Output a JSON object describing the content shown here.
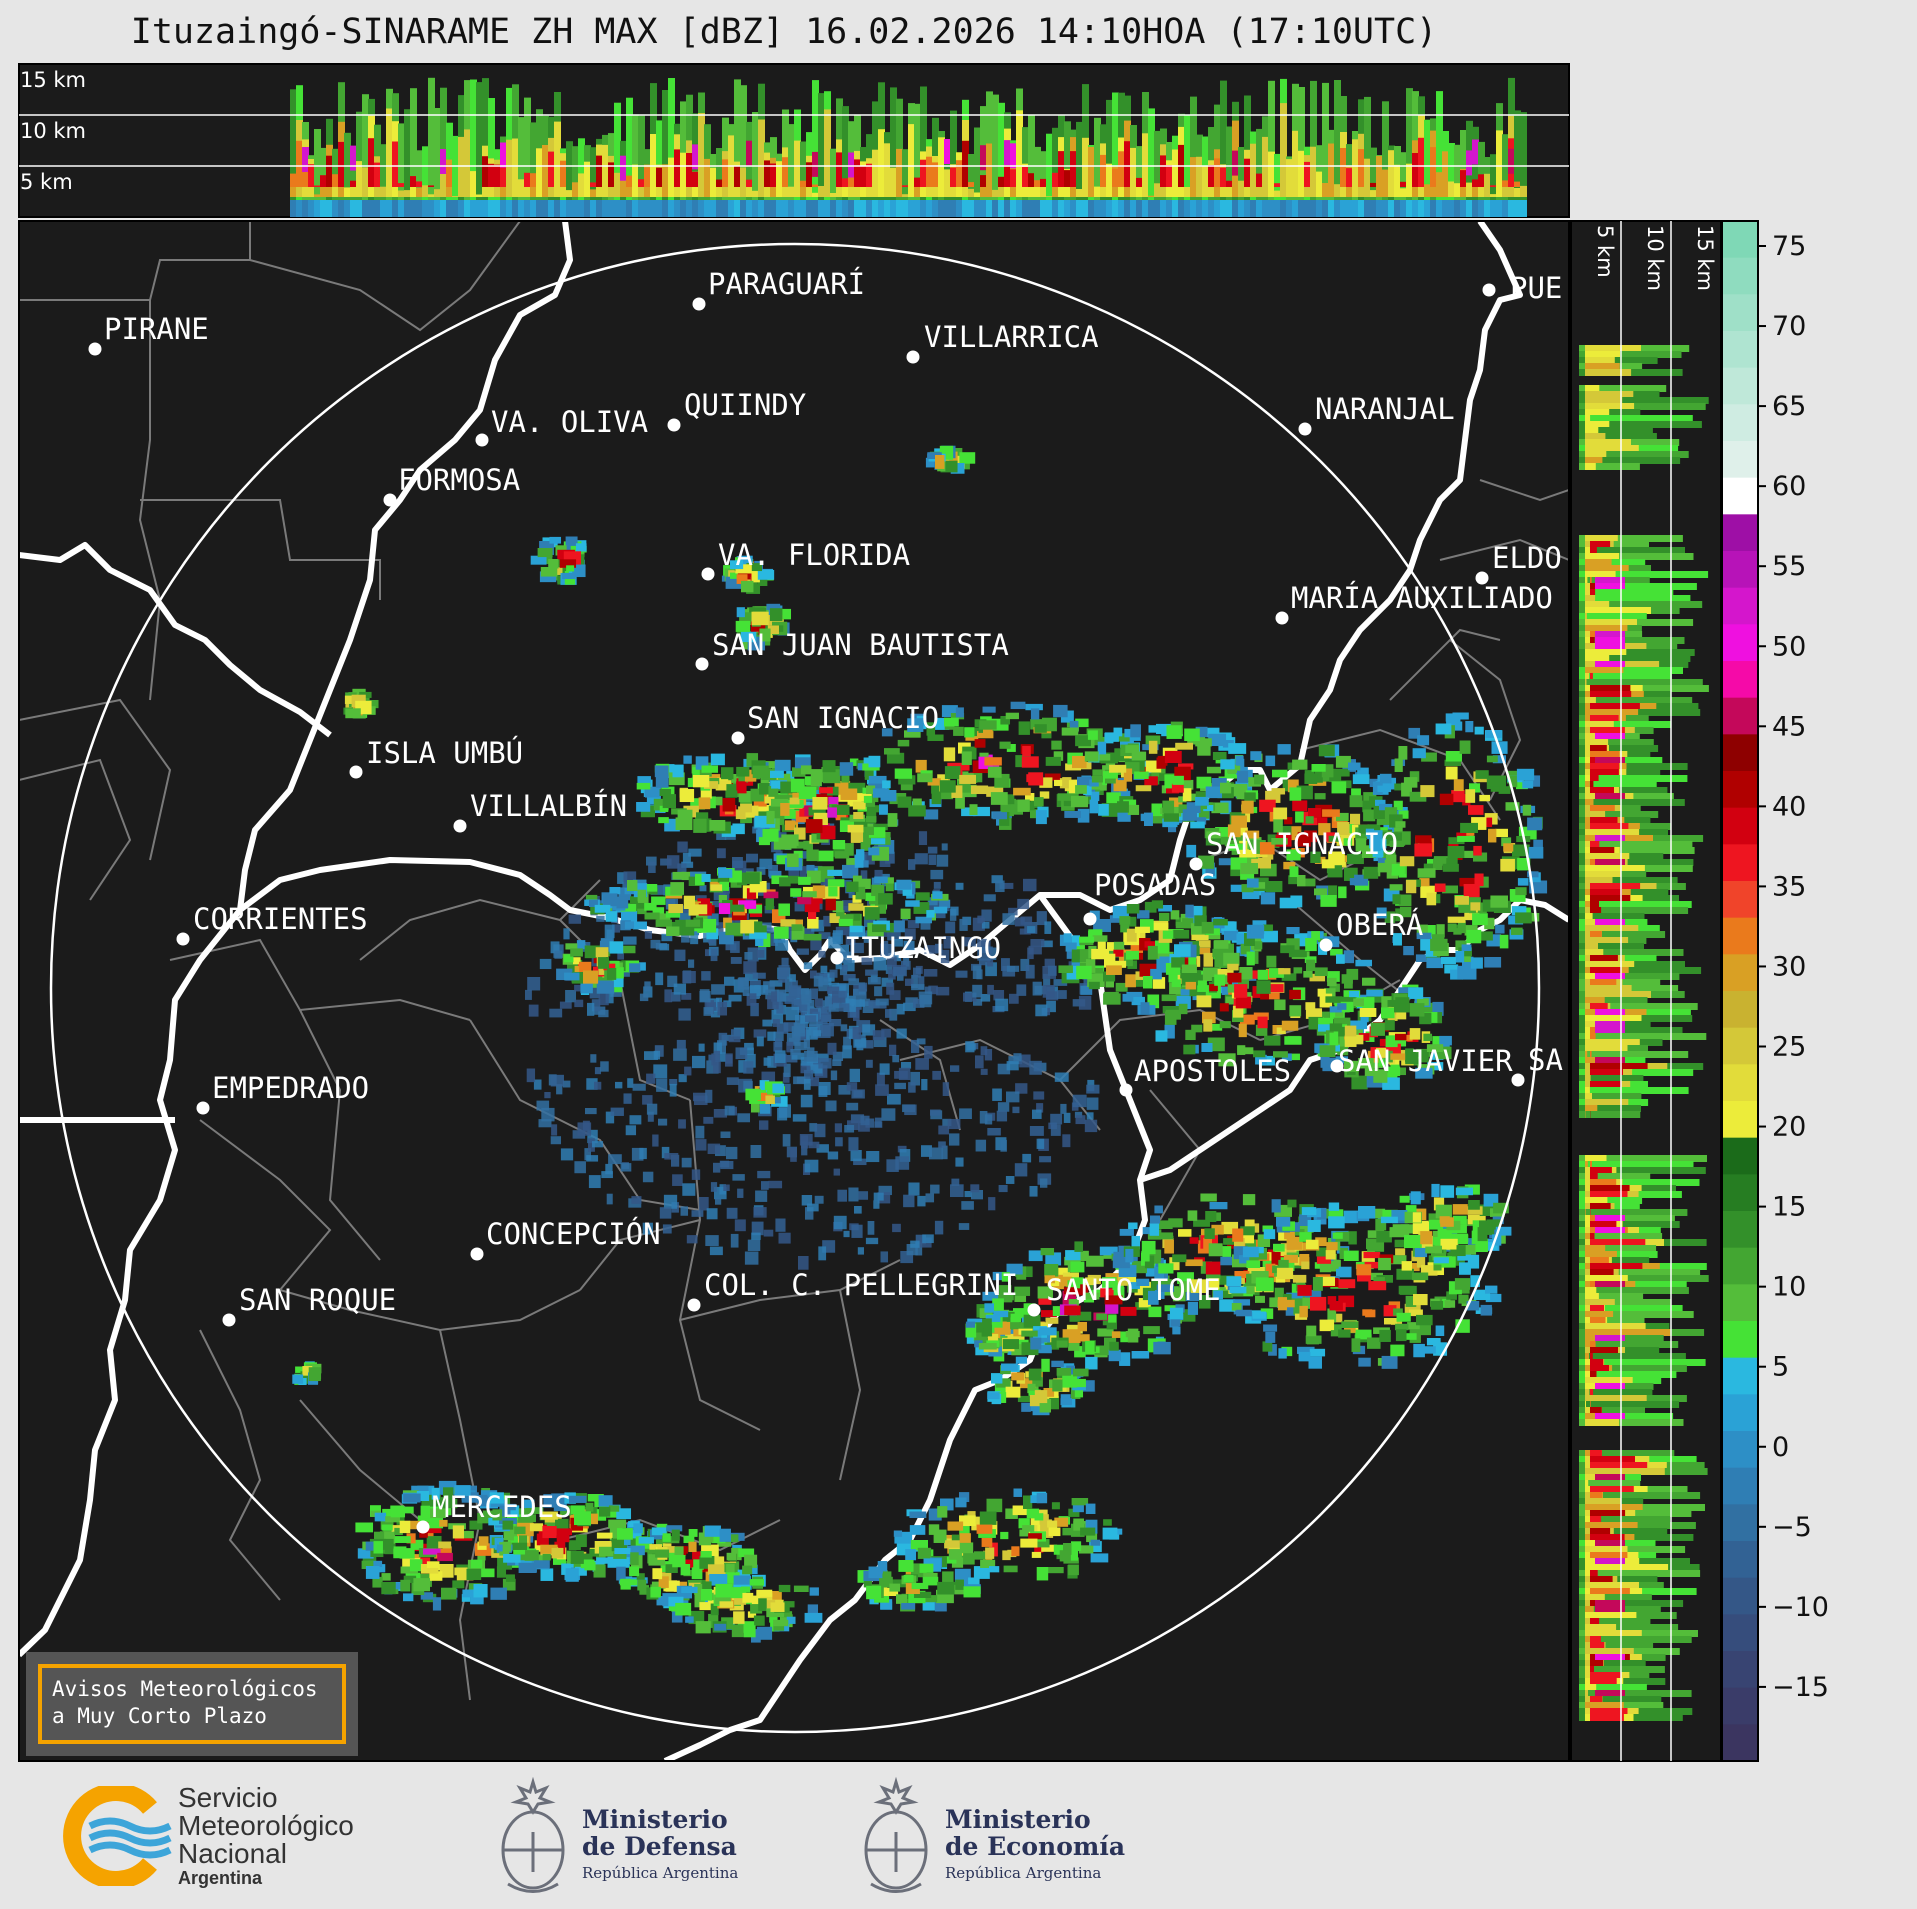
{
  "title": "Ituzaingó-SINARAME ZH MAX [dBZ] 16.02.2026 14:10HOA (17:10UTC)",
  "altitude_labels_top": [
    "15 km",
    "10 km",
    "5 km"
  ],
  "altitude_labels_side": [
    "5 km",
    "10 km",
    "15 km"
  ],
  "colorbar": {
    "unit": "dBZ",
    "ticks": [
      "75",
      "70",
      "65",
      "60",
      "55",
      "50",
      "45",
      "40",
      "35",
      "30",
      "25",
      "20",
      "15",
      "10",
      "5",
      "0",
      "−5",
      "−10",
      "−15"
    ]
  },
  "cities": [
    {
      "name": "PIRANE"
    },
    {
      "name": "PARAGUARÍ"
    },
    {
      "name": "VILLARRICA"
    },
    {
      "name": "QUIINDY"
    },
    {
      "name": "VA. OLIVA"
    },
    {
      "name": "FORMOSA"
    },
    {
      "name": "NARANJAL"
    },
    {
      "name": "PUE"
    },
    {
      "name": "VA. FLORIDA"
    },
    {
      "name": "ELDO"
    },
    {
      "name": "MARÍA AUXILIADO"
    },
    {
      "name": "SAN JUAN BAUTISTA"
    },
    {
      "name": "SAN IGNACIO"
    },
    {
      "name": "ISLA UMBÚ"
    },
    {
      "name": "VILLALBÍN"
    },
    {
      "name": "SAN IGNACIO"
    },
    {
      "name": "POSADAS"
    },
    {
      "name": "CORRIENTES"
    },
    {
      "name": "ITUZAINGÓ"
    },
    {
      "name": "OBERÁ"
    },
    {
      "name": "EMPEDRADO"
    },
    {
      "name": "APOSTOLES"
    },
    {
      "name": "SAN JAVIER"
    },
    {
      "name": "SA"
    },
    {
      "name": "CONCEPCIÓN"
    },
    {
      "name": "COL. C. PELLEGRINI"
    },
    {
      "name": "SANTO TOME"
    },
    {
      "name": "SAN ROQUE"
    },
    {
      "name": "MERCEDES"
    }
  ],
  "warning_box": {
    "line1": "Avisos Meteorológicos",
    "line2": "a Muy Corto Plazo",
    "border_color": "#f5a300"
  },
  "footer": {
    "smn_line1": "Servicio",
    "smn_line2": "Meteorológico",
    "smn_line3": "Nacional",
    "smn_line4": "Argentina",
    "defensa_line1": "Ministerio",
    "defensa_line2": "de Defensa",
    "defensa_line3": "República Argentina",
    "economia_line1": "Ministerio",
    "economia_line2": "de Economía",
    "economia_line3": "República Argentina"
  },
  "colors": {
    "map_bg": "#1b1b1b",
    "border": "#ffffff",
    "admin": "#808080",
    "smn_orange": "#f5a300",
    "smn_blue": "#3da5d9"
  }
}
